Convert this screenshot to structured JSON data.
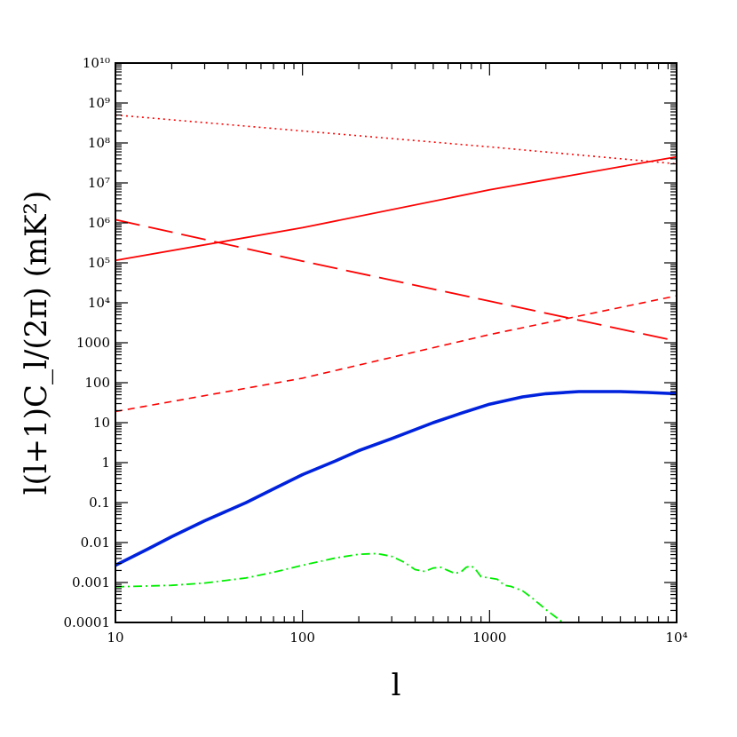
{
  "chart_data": {
    "type": "line",
    "xscale": "log",
    "yscale": "log",
    "xlim": [
      10,
      10000
    ],
    "ylim": [
      0.0001,
      10000000000
    ],
    "xlabel": "l",
    "ylabel": "l(l+1)C_l/(2π)  (mK²)",
    "grid": false,
    "xticks": [
      {
        "value": 10,
        "label": "10"
      },
      {
        "value": 100,
        "label": "100"
      },
      {
        "value": 1000,
        "label": "1000"
      },
      {
        "value": 10000,
        "label": "10⁴"
      }
    ],
    "yticks": [
      {
        "value": 0.0001,
        "label": "0.0001"
      },
      {
        "value": 0.001,
        "label": "0.001"
      },
      {
        "value": 0.01,
        "label": "0.01"
      },
      {
        "value": 0.1,
        "label": "0.1"
      },
      {
        "value": 1,
        "label": "1"
      },
      {
        "value": 10,
        "label": "10"
      },
      {
        "value": 100,
        "label": "100"
      },
      {
        "value": 1000,
        "label": "1000"
      },
      {
        "value": 10000,
        "label": "10⁴"
      },
      {
        "value": 100000,
        "label": "10⁵"
      },
      {
        "value": 1000000,
        "label": "10⁶"
      },
      {
        "value": 10000000,
        "label": "10⁷"
      },
      {
        "value": 100000000,
        "label": "10⁸"
      },
      {
        "value": 1000000000,
        "label": "10⁹"
      },
      {
        "value": 10000000000,
        "label": "10¹⁰"
      }
    ],
    "series": [
      {
        "color": "#ff0000",
        "dash": "2,4",
        "width": 1.6,
        "x": [
          10,
          100,
          1000,
          10000
        ],
        "y": [
          500000000,
          200000000,
          80000000,
          30000000
        ]
      },
      {
        "color": "#ff0000",
        "dash": "",
        "width": 1.8,
        "x": [
          10,
          100,
          1000,
          10000
        ],
        "y": [
          115000,
          760000,
          6700000,
          45000000
        ]
      },
      {
        "color": "#ff0000",
        "dash": "28,10",
        "width": 1.8,
        "x": [
          10,
          100,
          1000,
          10000
        ],
        "y": [
          1200000,
          110000,
          11000,
          1100
        ]
      },
      {
        "color": "#ff0000",
        "dash": "8,6",
        "width": 1.6,
        "x": [
          10,
          100,
          1000,
          10000
        ],
        "y": [
          19,
          130,
          1600,
          15000
        ]
      },
      {
        "color": "#0022dd",
        "dash": "",
        "width": 3.6,
        "x": [
          10,
          15,
          20,
          30,
          50,
          70,
          100,
          150,
          200,
          300,
          500,
          700,
          1000,
          1500,
          2000,
          3000,
          5000,
          7000,
          10000
        ],
        "y": [
          0.0027,
          0.007,
          0.014,
          0.035,
          0.1,
          0.22,
          0.5,
          1.1,
          2.0,
          4.0,
          10,
          17,
          29,
          44,
          53,
          60,
          60,
          57,
          53
        ]
      },
      {
        "color": "#00ee00",
        "dash": "10,4,2,4",
        "width": 1.8,
        "x": [
          10,
          20,
          30,
          50,
          70,
          100,
          150,
          200,
          250,
          300,
          350,
          400,
          450,
          500,
          550,
          600,
          650,
          700,
          750,
          800,
          850,
          900,
          1000,
          1100,
          1200,
          1300,
          1500,
          1700,
          2000,
          2200,
          2400,
          2600
        ],
        "y": [
          0.00078,
          0.00085,
          0.00097,
          0.0013,
          0.0018,
          0.0027,
          0.0041,
          0.0051,
          0.0053,
          0.0045,
          0.0032,
          0.0021,
          0.0019,
          0.0023,
          0.0024,
          0.002,
          0.0017,
          0.0018,
          0.0024,
          0.0026,
          0.002,
          0.0014,
          0.0013,
          0.0012,
          0.00085,
          0.0008,
          0.00062,
          0.0004,
          0.00021,
          0.00015,
          0.00011,
          9e-05
        ]
      }
    ]
  }
}
